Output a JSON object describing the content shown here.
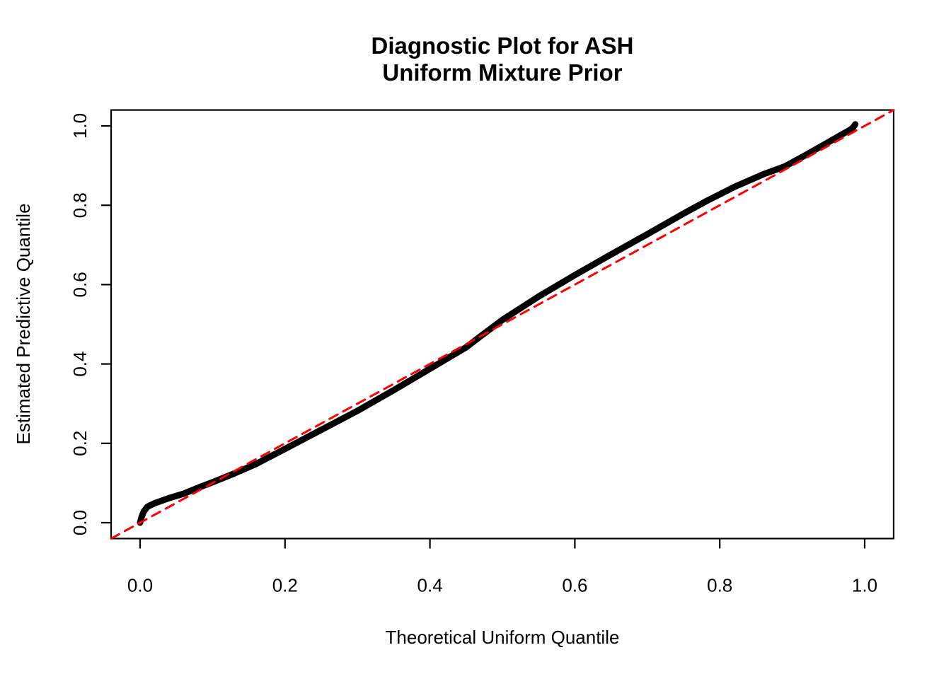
{
  "chart": {
    "title_line1": "Diagnostic Plot for ASH",
    "title_line2": "Uniform Mixture Prior",
    "xlabel": "Theoretical Uniform Quantile",
    "ylabel": "Estimated Predictive Quantile"
  },
  "chart_data": {
    "type": "scatter",
    "title": "Diagnostic Plot for ASH Uniform Mixture Prior",
    "xlabel": "Theoretical Uniform Quantile",
    "ylabel": "Estimated Predictive Quantile",
    "xlim": [
      -0.04,
      1.04
    ],
    "ylim": [
      -0.04,
      1.04
    ],
    "x_ticks": [
      0.0,
      0.2,
      0.4,
      0.6,
      0.8,
      1.0
    ],
    "y_ticks": [
      0.0,
      0.2,
      0.4,
      0.6,
      0.8,
      1.0
    ],
    "grid": false,
    "legend": "none",
    "series": [
      {
        "name": "estimated-predictive-quantiles",
        "kind": "qq-curve",
        "color": "#000000",
        "line_width": 9,
        "dash": "",
        "points": [
          [
            0.0,
            0.0
          ],
          [
            0.002,
            0.014
          ],
          [
            0.005,
            0.028
          ],
          [
            0.01,
            0.04
          ],
          [
            0.02,
            0.049
          ],
          [
            0.04,
            0.062
          ],
          [
            0.06,
            0.073
          ],
          [
            0.08,
            0.088
          ],
          [
            0.1,
            0.102
          ],
          [
            0.13,
            0.124
          ],
          [
            0.16,
            0.148
          ],
          [
            0.2,
            0.186
          ],
          [
            0.25,
            0.234
          ],
          [
            0.3,
            0.282
          ],
          [
            0.35,
            0.334
          ],
          [
            0.4,
            0.388
          ],
          [
            0.45,
            0.442
          ],
          [
            0.47,
            0.47
          ],
          [
            0.5,
            0.511
          ],
          [
            0.55,
            0.57
          ],
          [
            0.6,
            0.624
          ],
          [
            0.65,
            0.676
          ],
          [
            0.7,
            0.727
          ],
          [
            0.75,
            0.779
          ],
          [
            0.78,
            0.809
          ],
          [
            0.82,
            0.846
          ],
          [
            0.86,
            0.878
          ],
          [
            0.89,
            0.898
          ],
          [
            0.92,
            0.928
          ],
          [
            0.95,
            0.959
          ],
          [
            0.97,
            0.98
          ],
          [
            0.98,
            0.99
          ],
          [
            0.984,
            0.996
          ],
          [
            0.987,
            1.004
          ]
        ]
      },
      {
        "name": "reference-line-y-equals-x",
        "kind": "abline",
        "color": "#ff0000",
        "line_width": 3,
        "dash": "13 9",
        "points": [
          [
            -0.04,
            -0.04
          ],
          [
            1.04,
            1.04
          ]
        ]
      }
    ],
    "colors": {
      "curve": "#000000",
      "reference_line": "#ff0000",
      "axis": "#000000",
      "background": "#ffffff"
    }
  }
}
